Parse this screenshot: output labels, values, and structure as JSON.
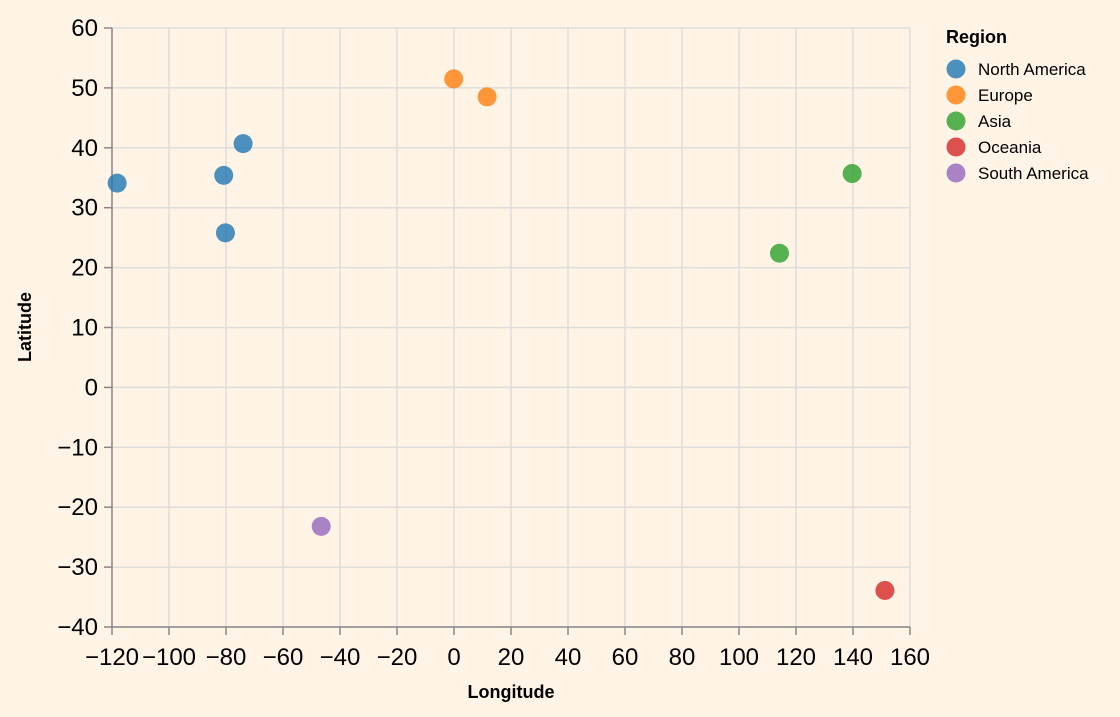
{
  "chart_data": {
    "type": "scatter",
    "title": "",
    "xlabel": "Longitude",
    "ylabel": "Latitude",
    "xlim": [
      -120,
      160
    ],
    "ylim": [
      -40,
      60
    ],
    "x_ticks": [
      -120,
      -100,
      -80,
      -60,
      -40,
      -20,
      0,
      20,
      40,
      60,
      80,
      100,
      120,
      140,
      160
    ],
    "y_ticks": [
      -40,
      -30,
      -20,
      -10,
      0,
      10,
      20,
      30,
      40,
      50,
      60
    ],
    "grid": true,
    "legend": {
      "title": "Region",
      "placement": "right",
      "entries": [
        {
          "name": "North America",
          "color": "#1f77b4"
        },
        {
          "name": "Europe",
          "color": "#ff7f0e"
        },
        {
          "name": "Asia",
          "color": "#2ca02c"
        },
        {
          "name": "Oceania",
          "color": "#d62728"
        },
        {
          "name": "South America",
          "color": "#9467bd"
        }
      ]
    },
    "series": [
      {
        "name": "North America",
        "color": "#1f77b4",
        "points": [
          {
            "x": -118.2,
            "y": 34.1
          },
          {
            "x": -80.8,
            "y": 35.4
          },
          {
            "x": -74.0,
            "y": 40.7
          },
          {
            "x": -80.2,
            "y": 25.8
          }
        ]
      },
      {
        "name": "Europe",
        "color": "#ff7f0e",
        "points": [
          {
            "x": -0.1,
            "y": 51.5
          },
          {
            "x": 11.6,
            "y": 48.5
          }
        ]
      },
      {
        "name": "Asia",
        "color": "#2ca02c",
        "points": [
          {
            "x": 114.2,
            "y": 22.4
          },
          {
            "x": 139.7,
            "y": 35.7
          }
        ]
      },
      {
        "name": "Oceania",
        "color": "#d62728",
        "points": [
          {
            "x": 151.2,
            "y": -33.9
          }
        ]
      },
      {
        "name": "South America",
        "color": "#9467bd",
        "points": [
          {
            "x": -46.6,
            "y": -23.2
          }
        ]
      }
    ]
  }
}
